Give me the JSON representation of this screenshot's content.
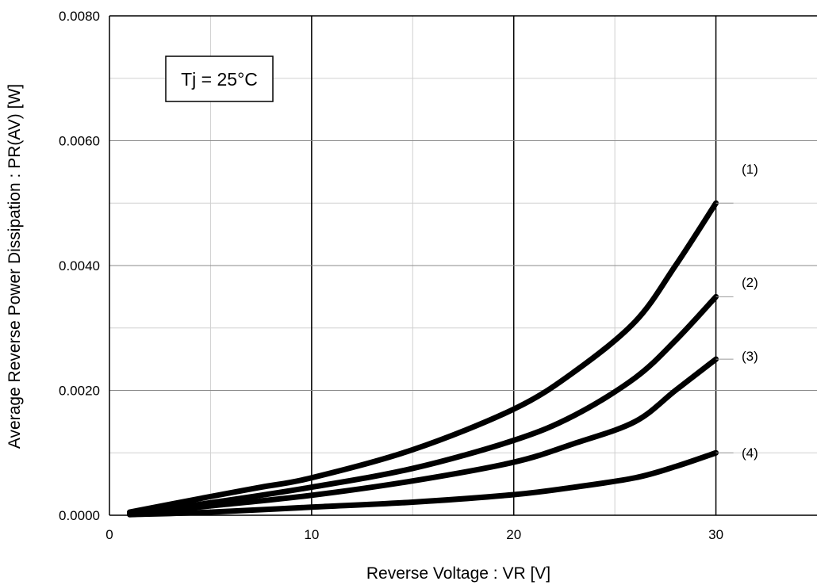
{
  "chart_data": {
    "type": "line",
    "title": "",
    "xlabel": "Reverse Voltage : VR [V]",
    "ylabel": "Average Reverse Power Dissipation : PR(AV) [W]",
    "xlim": [
      0,
      35
    ],
    "ylim": [
      0,
      0.008
    ],
    "x_ticks": [
      "0",
      "10",
      "20",
      "30"
    ],
    "y_ticks": [
      "0.0000",
      "0.0020",
      "0.0040",
      "0.0060",
      "0.0080"
    ],
    "grid": true,
    "annotation": "Tj = 25°C",
    "series": [
      {
        "name": "(1)",
        "x": [
          1,
          5,
          7.5,
          10,
          15,
          20,
          23,
          26,
          28,
          30
        ],
        "y": [
          5e-05,
          0.0003,
          0.00045,
          0.0006,
          0.00105,
          0.0017,
          0.0023,
          0.0031,
          0.004,
          0.005
        ]
      },
      {
        "name": "(2)",
        "x": [
          1,
          5,
          10,
          15,
          20,
          23,
          26,
          28,
          30
        ],
        "y": [
          3e-05,
          0.0002,
          0.00045,
          0.00075,
          0.0012,
          0.0016,
          0.0022,
          0.0028,
          0.0035
        ]
      },
      {
        "name": "(3)",
        "x": [
          1,
          5,
          10,
          15,
          20,
          23,
          26,
          28,
          30
        ],
        "y": [
          2e-05,
          0.00015,
          0.00032,
          0.00055,
          0.00085,
          0.00115,
          0.0015,
          0.002,
          0.0025
        ]
      },
      {
        "name": "(4)",
        "x": [
          1,
          5,
          10,
          15,
          20,
          23,
          26,
          28,
          30
        ],
        "y": [
          1e-05,
          5e-05,
          0.00013,
          0.00021,
          0.00033,
          0.00045,
          0.0006,
          0.00078,
          0.001
        ]
      }
    ]
  }
}
